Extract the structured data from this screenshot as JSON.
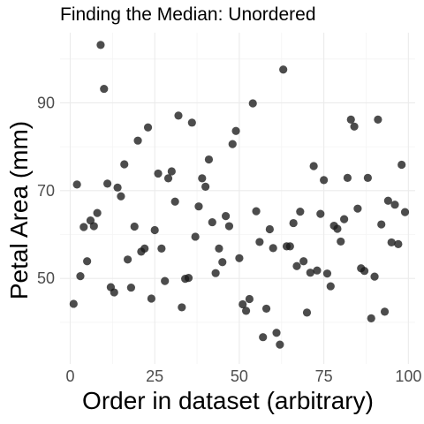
{
  "chart_data": {
    "type": "scatter",
    "title": "Finding the Median: Unordered",
    "xlabel": "Order in dataset (arbitrary)",
    "ylabel": "Petal Area (mm)",
    "xlim": [
      -3,
      102
    ],
    "ylim": [
      30.5,
      106
    ],
    "x_ticks": [
      0,
      25,
      50,
      75,
      100
    ],
    "x_tick_labels": [
      "0",
      "25",
      "50",
      "75",
      "100"
    ],
    "x_minor": [
      12.5,
      37.5,
      62.5,
      87.5
    ],
    "y_ticks": [
      50,
      70,
      90
    ],
    "y_tick_labels": [
      "50",
      "70",
      "90"
    ],
    "y_minor": [
      40,
      60,
      80,
      100
    ],
    "grid": true,
    "legend": "none",
    "point_color": "#1a1a1a",
    "points": [
      [
        1,
        44.2
      ],
      [
        2,
        71.4
      ],
      [
        3,
        50.5
      ],
      [
        4,
        61.7
      ],
      [
        5,
        53.9
      ],
      [
        6,
        63.2
      ],
      [
        7,
        61.9
      ],
      [
        8,
        64.9
      ],
      [
        9,
        103.2
      ],
      [
        10,
        93.2
      ],
      [
        11,
        71.6
      ],
      [
        12,
        48.0
      ],
      [
        13,
        46.8
      ],
      [
        14,
        70.7
      ],
      [
        15,
        68.7
      ],
      [
        16,
        76.0
      ],
      [
        17,
        54.3
      ],
      [
        18,
        47.9
      ],
      [
        19,
        61.8
      ],
      [
        20,
        81.4
      ],
      [
        21,
        56.1
      ],
      [
        22,
        56.8
      ],
      [
        23,
        84.4
      ],
      [
        24,
        45.4
      ],
      [
        25,
        61.0
      ],
      [
        26,
        73.9
      ],
      [
        27,
        56.8
      ],
      [
        28,
        49.4
      ],
      [
        29,
        72.8
      ],
      [
        30,
        74.4
      ],
      [
        31,
        67.5
      ],
      [
        32,
        87.1
      ],
      [
        33,
        43.4
      ],
      [
        34,
        49.9
      ],
      [
        35,
        50.1
      ],
      [
        36,
        85.5
      ],
      [
        37,
        59.5
      ],
      [
        38,
        66.4
      ],
      [
        39,
        72.8
      ],
      [
        40,
        70.9
      ],
      [
        41,
        77.1
      ],
      [
        42,
        62.8
      ],
      [
        43,
        51.2
      ],
      [
        44,
        56.8
      ],
      [
        45,
        53.7
      ],
      [
        46,
        64.2
      ],
      [
        47,
        61.9
      ],
      [
        48,
        80.6
      ],
      [
        49,
        83.6
      ],
      [
        50,
        54.6
      ],
      [
        51,
        44.1
      ],
      [
        52,
        42.6
      ],
      [
        53,
        45.3
      ],
      [
        54,
        89.9
      ],
      [
        55,
        65.3
      ],
      [
        56,
        58.3
      ],
      [
        57,
        36.6
      ],
      [
        58,
        43.1
      ],
      [
        59,
        61.2
      ],
      [
        60,
        56.9
      ],
      [
        61,
        37.6
      ],
      [
        62,
        34.9
      ],
      [
        63,
        97.6
      ],
      [
        64,
        57.3
      ],
      [
        65,
        57.3
      ],
      [
        66,
        62.6
      ],
      [
        67,
        52.8
      ],
      [
        68,
        65.2
      ],
      [
        69,
        53.9
      ],
      [
        70,
        42.2
      ],
      [
        71,
        51.3
      ],
      [
        72,
        75.6
      ],
      [
        73,
        51.8
      ],
      [
        74,
        64.7
      ],
      [
        75,
        72.4
      ],
      [
        76,
        51.1
      ],
      [
        77,
        48.2
      ],
      [
        78,
        62.0
      ],
      [
        79,
        61.3
      ],
      [
        80,
        58.4
      ],
      [
        81,
        63.5
      ],
      [
        82,
        72.9
      ],
      [
        83,
        86.2
      ],
      [
        84,
        84.6
      ],
      [
        85,
        65.9
      ],
      [
        86,
        52.3
      ],
      [
        87,
        51.7
      ],
      [
        88,
        72.9
      ],
      [
        89,
        40.9
      ],
      [
        90,
        50.4
      ],
      [
        91,
        86.2
      ],
      [
        92,
        62.3
      ],
      [
        93,
        42.4
      ],
      [
        94,
        67.7
      ],
      [
        95,
        58.2
      ],
      [
        96,
        66.8
      ],
      [
        97,
        57.8
      ],
      [
        98,
        75.9
      ],
      [
        99,
        65.1
      ]
    ]
  }
}
